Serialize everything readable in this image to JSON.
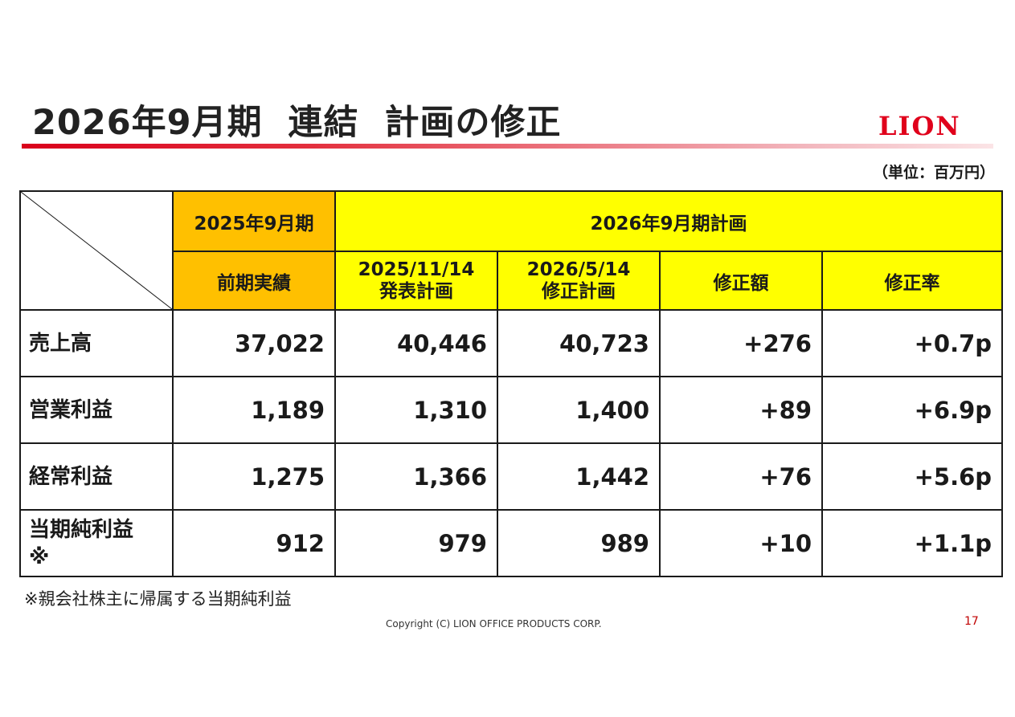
{
  "slide": {
    "title": "2026年9月期  連結  計画の修正",
    "logo_text": "LION",
    "unit_label": "（単位：百万円）",
    "footnote": "※親会社株主に帰属する当期純利益",
    "copyright": "Copyright (C) LION OFFICE PRODUCTS CORP.",
    "page_number": "17"
  },
  "table": {
    "header": {
      "prev_period": "2025年9月期",
      "plan_period": "2026年9月期計画",
      "prev_actual": "前期実績",
      "orig_plan_date": "2025/11/14",
      "orig_plan_label": "発表計画",
      "rev_plan_date": "2026/5/14",
      "rev_plan_label": "修正計画",
      "revision_amount": "修正額",
      "revision_rate": "修正率"
    },
    "rows": [
      {
        "label": "売上高",
        "actual": "37,022",
        "original": "40,446",
        "revised": "40,723",
        "diff": "+276",
        "rate": "+0.7p"
      },
      {
        "label": "営業利益",
        "actual": "1,189",
        "original": "1,310",
        "revised": "1,400",
        "diff": "+89",
        "rate": "+6.9p"
      },
      {
        "label": "経常利益",
        "actual": "1,275",
        "original": "1,366",
        "revised": "1,442",
        "diff": "+76",
        "rate": "+5.6p"
      },
      {
        "label": "当期純利益\n※",
        "actual": "912",
        "original": "979",
        "revised": "989",
        "diff": "+10",
        "rate": "+1.1p"
      }
    ]
  },
  "colors": {
    "accent_red": "#e0001b",
    "header_orange": "#ffc000",
    "header_yellow": "#ffff00"
  }
}
